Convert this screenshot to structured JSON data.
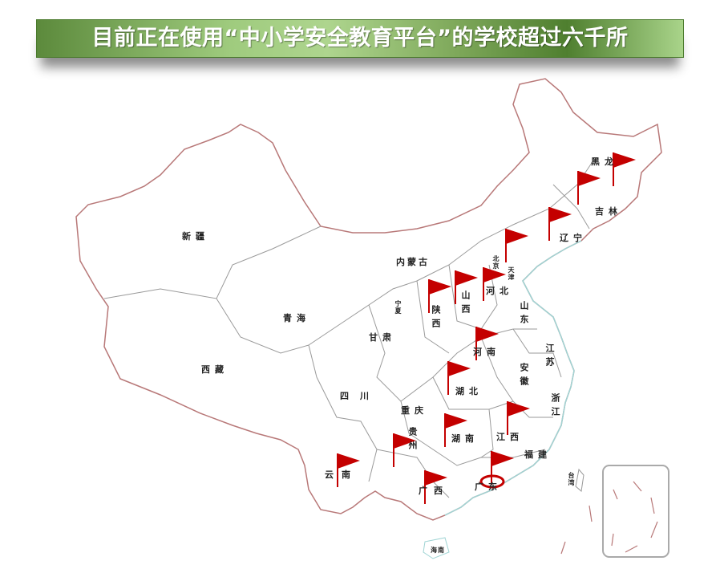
{
  "title": "目前正在使用“中小学安全教育平台”的学校超过六千所",
  "colors": {
    "flag": "#c40000",
    "border": "#b87878",
    "coast": "#9fd4d4",
    "banner": "#7ea85a"
  },
  "provinces": {
    "heilongjiang": "黑龙",
    "jilin": "吉林",
    "liaoning": "辽宁",
    "beijing": "北京",
    "tianjin": "天津",
    "hebei": "河北",
    "shandong": "山东",
    "shanxi": "山西",
    "neimenggu": "内蒙古",
    "ningxia": "宁夏",
    "shaanxi": "陕西",
    "gansu": "甘肃",
    "qinghai": "青海",
    "xinjiang": "新疆",
    "xizang": "西藏",
    "sichuan": "四川",
    "chongqing": "重庆",
    "guizhou": "贵州",
    "yunnan": "云南",
    "guangxi": "广西",
    "guangdong": "广东",
    "hunan": "湖南",
    "hubei": "湖北",
    "henan": "河南",
    "anhui": "安徽",
    "jiangsu": "江苏",
    "zhejiang": "浙江",
    "jiangxi": "江西",
    "fujian": "福建",
    "taiwan": "台湾",
    "hainan": "海南"
  },
  "flagged_provinces": [
    "黑龙江",
    "吉林",
    "辽宁",
    "北京",
    "河北",
    "山西",
    "陕西",
    "河南",
    "湖北",
    "江西",
    "湖南",
    "贵州",
    "云南",
    "广西",
    "广东"
  ],
  "highlighted_province": "广东",
  "icons": {
    "flag": "red-flag-icon",
    "location": "location-ring-icon"
  }
}
